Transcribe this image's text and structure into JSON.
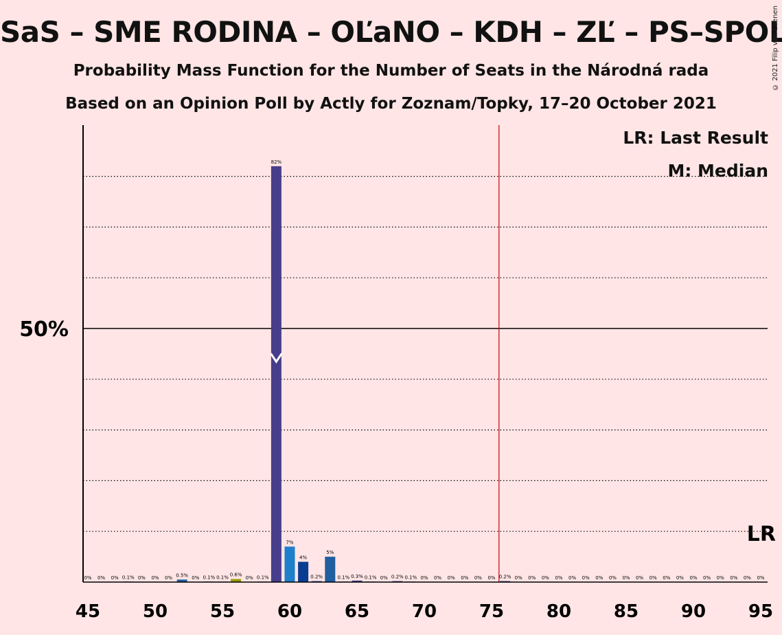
{
  "title": "SaS – SME RODINA – OĽaNO – KDH – ZĽ – PS–SPOLU",
  "subtitle1": "Probability Mass Function for the Number of Seats in the Národná rada",
  "subtitle2": "Based on an Opinion Poll by Actly for Zoznam/Topky, 17–20 October 2021",
  "copyright": "© 2021 Filip van Laenen",
  "legend": {
    "lr": "LR: Last Result",
    "m": "M: Median"
  },
  "lr_marker": "LR",
  "colors": {
    "background": "#ffe5e5",
    "last_result_line": "#cc0000",
    "purple": "#483d8b",
    "blue": "#1e7fcb",
    "darkblue": "#0a3d91",
    "steelblue": "#1f5fa0",
    "olive": "#9a9a00"
  },
  "chart_data": {
    "type": "bar",
    "x_range": [
      45,
      95
    ],
    "xticks": [
      45,
      50,
      55,
      60,
      65,
      70,
      75,
      80,
      85,
      90,
      95
    ],
    "ylim": [
      0,
      90
    ],
    "ytick_label": "50%",
    "gridlines_dotted": [
      10,
      20,
      30,
      40,
      60,
      70,
      80
    ],
    "gridline_solid": 50,
    "last_result": 76,
    "median": 59,
    "bars": [
      {
        "x": 45,
        "value": 0,
        "label": "0%",
        "color": "purple"
      },
      {
        "x": 46,
        "value": 0,
        "label": "0%",
        "color": "purple"
      },
      {
        "x": 47,
        "value": 0,
        "label": "0%",
        "color": "purple"
      },
      {
        "x": 48,
        "value": 0.1,
        "label": "0.1%",
        "color": "purple"
      },
      {
        "x": 49,
        "value": 0,
        "label": "0%",
        "color": "purple"
      },
      {
        "x": 50,
        "value": 0,
        "label": "0%",
        "color": "purple"
      },
      {
        "x": 51,
        "value": 0,
        "label": "0%",
        "color": "purple"
      },
      {
        "x": 52,
        "value": 0.5,
        "label": "0.5%",
        "color": "steelblue"
      },
      {
        "x": 53,
        "value": 0,
        "label": "0%",
        "color": "purple"
      },
      {
        "x": 54,
        "value": 0.1,
        "label": "0.1%",
        "color": "purple"
      },
      {
        "x": 55,
        "value": 0.1,
        "label": "0.1%",
        "color": "purple"
      },
      {
        "x": 56,
        "value": 0.6,
        "label": "0.6%",
        "color": "olive"
      },
      {
        "x": 57,
        "value": 0,
        "label": "0%",
        "color": "purple"
      },
      {
        "x": 58,
        "value": 0.1,
        "label": "0.1%",
        "color": "purple"
      },
      {
        "x": 59,
        "value": 82,
        "label": "82%",
        "color": "purple"
      },
      {
        "x": 60,
        "value": 7,
        "label": "7%",
        "color": "blue"
      },
      {
        "x": 61,
        "value": 4,
        "label": "4%",
        "color": "darkblue"
      },
      {
        "x": 62,
        "value": 0.2,
        "label": "0.2%",
        "color": "purple"
      },
      {
        "x": 63,
        "value": 5,
        "label": "5%",
        "color": "steelblue"
      },
      {
        "x": 64,
        "value": 0.1,
        "label": "0.1%",
        "color": "purple"
      },
      {
        "x": 65,
        "value": 0.3,
        "label": "0.3%",
        "color": "purple"
      },
      {
        "x": 66,
        "value": 0.1,
        "label": "0.1%",
        "color": "purple"
      },
      {
        "x": 67,
        "value": 0,
        "label": "0%",
        "color": "purple"
      },
      {
        "x": 68,
        "value": 0.2,
        "label": "0.2%",
        "color": "purple"
      },
      {
        "x": 69,
        "value": 0.1,
        "label": "0.1%",
        "color": "purple"
      },
      {
        "x": 70,
        "value": 0,
        "label": "0%",
        "color": "purple"
      },
      {
        "x": 71,
        "value": 0,
        "label": "0%",
        "color": "purple"
      },
      {
        "x": 72,
        "value": 0,
        "label": "0%",
        "color": "purple"
      },
      {
        "x": 73,
        "value": 0,
        "label": "0%",
        "color": "purple"
      },
      {
        "x": 74,
        "value": 0,
        "label": "0%",
        "color": "purple"
      },
      {
        "x": 75,
        "value": 0,
        "label": "0%",
        "color": "purple"
      },
      {
        "x": 76,
        "value": 0.2,
        "label": "0.2%",
        "color": "purple"
      },
      {
        "x": 77,
        "value": 0,
        "label": "0%",
        "color": "purple"
      },
      {
        "x": 78,
        "value": 0,
        "label": "0%",
        "color": "purple"
      },
      {
        "x": 79,
        "value": 0,
        "label": "0%",
        "color": "purple"
      },
      {
        "x": 80,
        "value": 0,
        "label": "0%",
        "color": "purple"
      },
      {
        "x": 81,
        "value": 0,
        "label": "0%",
        "color": "purple"
      },
      {
        "x": 82,
        "value": 0,
        "label": "0%",
        "color": "purple"
      },
      {
        "x": 83,
        "value": 0,
        "label": "0%",
        "color": "purple"
      },
      {
        "x": 84,
        "value": 0,
        "label": "0%",
        "color": "purple"
      },
      {
        "x": 85,
        "value": 0,
        "label": "0%",
        "color": "purple"
      },
      {
        "x": 86,
        "value": 0,
        "label": "0%",
        "color": "purple"
      },
      {
        "x": 87,
        "value": 0,
        "label": "0%",
        "color": "purple"
      },
      {
        "x": 88,
        "value": 0,
        "label": "0%",
        "color": "purple"
      },
      {
        "x": 89,
        "value": 0,
        "label": "0%",
        "color": "purple"
      },
      {
        "x": 90,
        "value": 0,
        "label": "0%",
        "color": "purple"
      },
      {
        "x": 91,
        "value": 0,
        "label": "0%",
        "color": "purple"
      },
      {
        "x": 92,
        "value": 0,
        "label": "0%",
        "color": "purple"
      },
      {
        "x": 93,
        "value": 0,
        "label": "0%",
        "color": "purple"
      },
      {
        "x": 94,
        "value": 0,
        "label": "0%",
        "color": "purple"
      },
      {
        "x": 95,
        "value": 0,
        "label": "0%",
        "color": "purple"
      }
    ]
  }
}
